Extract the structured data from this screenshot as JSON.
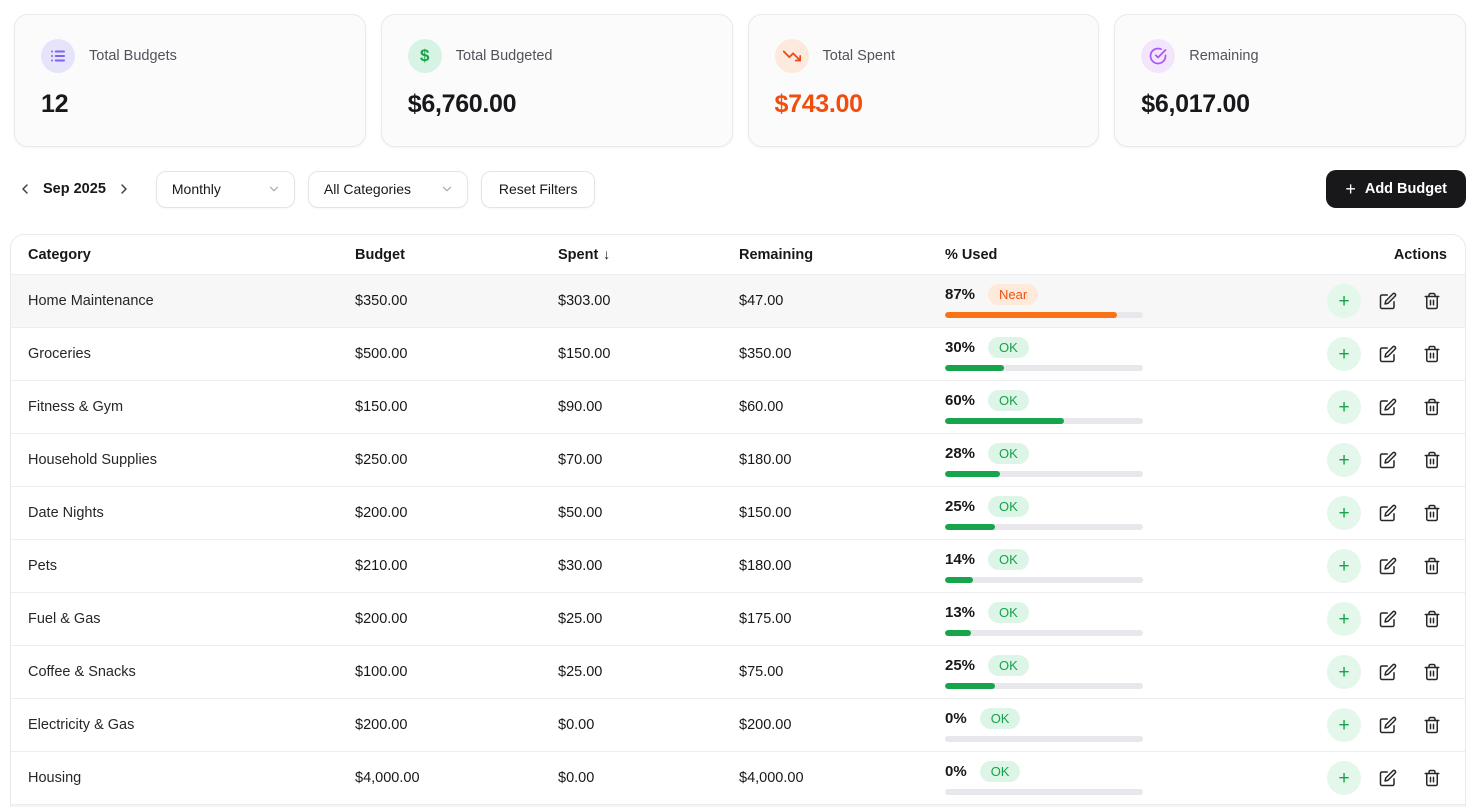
{
  "cards": [
    {
      "label": "Total Budgets",
      "value": "12",
      "icon": "list-icon",
      "icon_color": "#7c62f5",
      "icon_bg": "#e5e4fb",
      "value_color": "#18181b"
    },
    {
      "label": "Total Budgeted",
      "value": "$6,760.00",
      "icon": "dollar-icon",
      "icon_color": "#16a34a",
      "icon_bg": "#d7f3e3",
      "value_color": "#18181b"
    },
    {
      "label": "Total Spent",
      "value": "$743.00",
      "icon": "trending-down-icon",
      "icon_color": "#eb4a18",
      "icon_bg": "#fdeadc",
      "value_color": "#f14d0c"
    },
    {
      "label": "Remaining",
      "value": "$6,017.00",
      "icon": "check-circle-icon",
      "icon_color": "#a958f5",
      "icon_bg": "#f3e6fc",
      "value_color": "#18181b"
    }
  ],
  "toolbar": {
    "month": "Sep 2025",
    "period_select": "Monthly",
    "category_select": "All Categories",
    "reset_label": "Reset Filters",
    "add_label": "Add Budget",
    "add_plus": "+"
  },
  "table": {
    "columns": {
      "category": "Category",
      "budget": "Budget",
      "spent": "Spent",
      "spent_sort_arrow": "↓",
      "remaining": "Remaining",
      "used": "% Used",
      "actions": "Actions"
    },
    "rows": [
      {
        "category": "Home Maintenance",
        "budget": "$350.00",
        "spent": "$303.00",
        "remaining": "$47.00",
        "pct": 87,
        "pct_label": "87%",
        "status": "near",
        "status_label": "Near",
        "highlight": true
      },
      {
        "category": "Groceries",
        "budget": "$500.00",
        "spent": "$150.00",
        "remaining": "$350.00",
        "pct": 30,
        "pct_label": "30%",
        "status": "ok",
        "status_label": "OK",
        "highlight": false
      },
      {
        "category": "Fitness & Gym",
        "budget": "$150.00",
        "spent": "$90.00",
        "remaining": "$60.00",
        "pct": 60,
        "pct_label": "60%",
        "status": "ok",
        "status_label": "OK",
        "highlight": false
      },
      {
        "category": "Household Supplies",
        "budget": "$250.00",
        "spent": "$70.00",
        "remaining": "$180.00",
        "pct": 28,
        "pct_label": "28%",
        "status": "ok",
        "status_label": "OK",
        "highlight": false
      },
      {
        "category": "Date Nights",
        "budget": "$200.00",
        "spent": "$50.00",
        "remaining": "$150.00",
        "pct": 25,
        "pct_label": "25%",
        "status": "ok",
        "status_label": "OK",
        "highlight": false
      },
      {
        "category": "Pets",
        "budget": "$210.00",
        "spent": "$30.00",
        "remaining": "$180.00",
        "pct": 14,
        "pct_label": "14%",
        "status": "ok",
        "status_label": "OK",
        "highlight": false
      },
      {
        "category": "Fuel & Gas",
        "budget": "$200.00",
        "spent": "$25.00",
        "remaining": "$175.00",
        "pct": 13,
        "pct_label": "13%",
        "status": "ok",
        "status_label": "OK",
        "highlight": false
      },
      {
        "category": "Coffee & Snacks",
        "budget": "$100.00",
        "spent": "$25.00",
        "remaining": "$75.00",
        "pct": 25,
        "pct_label": "25%",
        "status": "ok",
        "status_label": "OK",
        "highlight": false
      },
      {
        "category": "Electricity & Gas",
        "budget": "$200.00",
        "spent": "$0.00",
        "remaining": "$200.00",
        "pct": 0,
        "pct_label": "0%",
        "status": "ok",
        "status_label": "OK",
        "highlight": false
      },
      {
        "category": "Housing",
        "budget": "$4,000.00",
        "spent": "$0.00",
        "remaining": "$4,000.00",
        "pct": 0,
        "pct_label": "0%",
        "status": "ok",
        "status_label": "OK",
        "highlight": false
      }
    ]
  },
  "colors": {
    "accent_button": "#18181b",
    "spent_value": "#f14d0c",
    "status": {
      "ok": {
        "text": "#16a34a",
        "bg": "#dcf5e6",
        "bar": "#17a54c"
      },
      "near": {
        "text": "#f2500f",
        "bg": "#fdeada",
        "bar": "#f97316"
      }
    }
  }
}
